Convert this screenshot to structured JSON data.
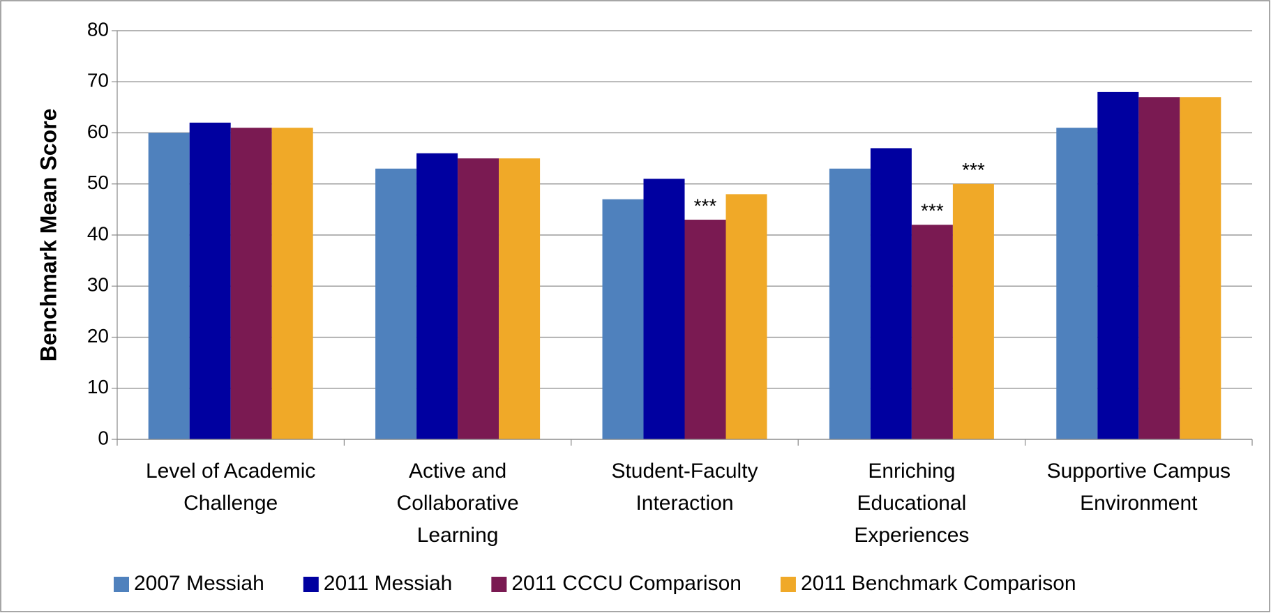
{
  "chart_data": {
    "type": "bar",
    "ylabel": "Benchmark Mean Score",
    "categories": [
      "Level of Academic\nChallenge",
      "Active and\nCollaborative\nLearning",
      "Student-Faculty\nInteraction",
      "Enriching\nEducational\nExperiences",
      "Supportive Campus\nEnvironment"
    ],
    "series": [
      {
        "name": "2007 Messiah",
        "color": "#4f81bd",
        "values": [
          60,
          53,
          47,
          53,
          61
        ]
      },
      {
        "name": "2011 Messiah",
        "color": "#0000a0",
        "values": [
          62,
          56,
          51,
          57,
          68
        ]
      },
      {
        "name": "2011 CCCU Comparison",
        "color": "#7a1a52",
        "values": [
          61,
          55,
          43,
          42,
          67
        ],
        "annotations": [
          null,
          null,
          "***",
          "***",
          null
        ]
      },
      {
        "name": "2011 Benchmark Comparison",
        "color": "#f0a928",
        "values": [
          61,
          55,
          48,
          50,
          67
        ],
        "annotations": [
          null,
          null,
          null,
          "***",
          null
        ]
      }
    ],
    "ylim": [
      0,
      80
    ],
    "yticks": [
      0,
      10,
      20,
      30,
      40,
      50,
      60,
      70,
      80
    ],
    "grid": true,
    "legend": "bottom"
  }
}
